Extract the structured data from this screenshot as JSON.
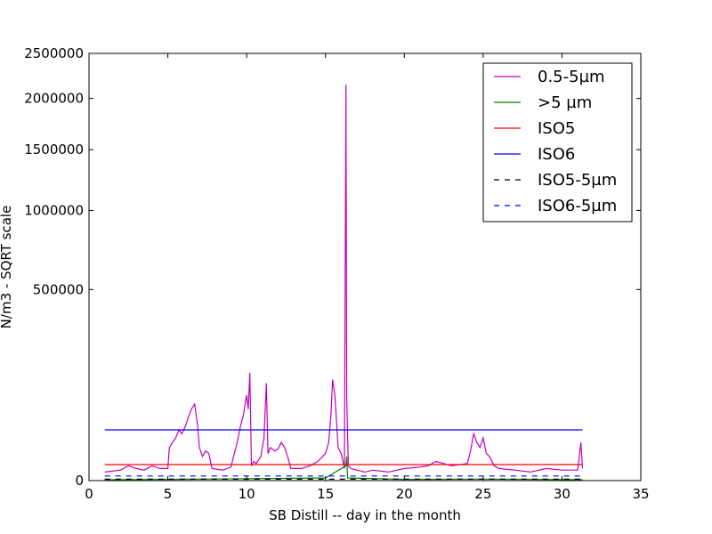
{
  "chart_data": {
    "type": "line",
    "title": "",
    "xlabel": "SB Distill -- day in the month",
    "ylabel": "N/m3 - SQRT scale",
    "x_scale": "linear",
    "y_scale": "sqrt",
    "xlim": [
      0,
      35
    ],
    "ylim": [
      0,
      2500000
    ],
    "x_ticks": [
      0,
      5,
      10,
      15,
      20,
      25,
      30,
      35
    ],
    "x_tick_labels": [
      "0",
      "5",
      "10",
      "15",
      "20",
      "25",
      "30",
      "35"
    ],
    "y_ticks": [
      0,
      500000,
      1000000,
      1500000,
      2000000,
      2500000
    ],
    "y_tick_labels": [
      "0",
      "500000",
      "1000000",
      "1500000",
      "2000000",
      "2500000"
    ],
    "grid": false,
    "legend_position": "top-right",
    "series": [
      {
        "name": "0.5-5µm",
        "color": "#bf00bf",
        "style": "solid",
        "x": [
          1.0,
          2.0,
          2.5,
          3.0,
          3.5,
          4.0,
          4.5,
          5.0,
          5.1,
          5.3,
          5.5,
          5.7,
          5.9,
          6.1,
          6.3,
          6.5,
          6.7,
          6.9,
          7.0,
          7.2,
          7.4,
          7.6,
          7.8,
          8.5,
          9.0,
          9.4,
          9.6,
          9.8,
          10.0,
          10.1,
          10.2,
          10.3,
          10.45,
          10.6,
          10.9,
          11.1,
          11.25,
          11.35,
          11.5,
          11.8,
          12.0,
          12.2,
          12.4,
          12.6,
          12.8,
          13.5,
          14.0,
          14.5,
          15.0,
          15.2,
          15.35,
          15.45,
          15.6,
          15.8,
          16.0,
          16.2,
          16.3,
          16.35,
          16.45,
          16.6,
          17.0,
          17.5,
          18.0,
          19.0,
          20.0,
          21.0,
          21.5,
          22.0,
          22.5,
          23.0,
          24.0,
          24.2,
          24.4,
          24.6,
          24.8,
          25.0,
          25.2,
          25.4,
          25.7,
          26.0,
          27.0,
          28.0,
          29.0,
          30.0,
          31.0,
          31.2,
          31.3
        ],
        "y": [
          1000,
          1500,
          3000,
          2000,
          1500,
          3000,
          2000,
          2000,
          15000,
          20000,
          25000,
          35000,
          30000,
          40000,
          55000,
          70000,
          80000,
          40000,
          15000,
          8000,
          12000,
          10000,
          2000,
          1500,
          2500,
          20000,
          40000,
          60000,
          100000,
          70000,
          160000,
          3000,
          5000,
          4000,
          8000,
          25000,
          130000,
          10000,
          15000,
          12000,
          14000,
          20000,
          15000,
          8000,
          2000,
          2000,
          3000,
          5000,
          10000,
          20000,
          60000,
          140000,
          100000,
          15000,
          10000,
          2000,
          2150000,
          90000,
          3000,
          2000,
          1500,
          1000,
          1500,
          1000,
          2000,
          2500,
          3000,
          5000,
          4000,
          3000,
          4000,
          12000,
          30000,
          20000,
          15000,
          25000,
          10000,
          8000,
          3000,
          2000,
          1500,
          1000,
          2000,
          1500,
          1500,
          20000,
          2000
        ]
      },
      {
        "name": ">5 µm",
        "color": "#008000",
        "style": "solid",
        "x": [
          1.0,
          5.0,
          10.0,
          15.0,
          16.3,
          16.35,
          16.4,
          20.0,
          25.0,
          31.3
        ],
        "y": [
          10,
          20,
          50,
          100,
          3000,
          8000,
          100,
          20,
          30,
          10
        ]
      },
      {
        "name": "ISO5",
        "color": "#ff0000",
        "style": "solid",
        "x": [
          1.0,
          31.3
        ],
        "y": [
          3520,
          3520
        ]
      },
      {
        "name": "ISO6",
        "color": "#0000ff",
        "style": "solid",
        "x": [
          1.0,
          31.3
        ],
        "y": [
          35200,
          35200
        ]
      },
      {
        "name": "ISO5-5µm",
        "color": "#000000",
        "style": "dashed",
        "x": [
          1.0,
          31.3
        ],
        "y": [
          29,
          29
        ]
      },
      {
        "name": "ISO6-5µm",
        "color": "#0000ff",
        "style": "dashed",
        "x": [
          1.0,
          31.3
        ],
        "y": [
          293,
          293
        ]
      }
    ]
  }
}
